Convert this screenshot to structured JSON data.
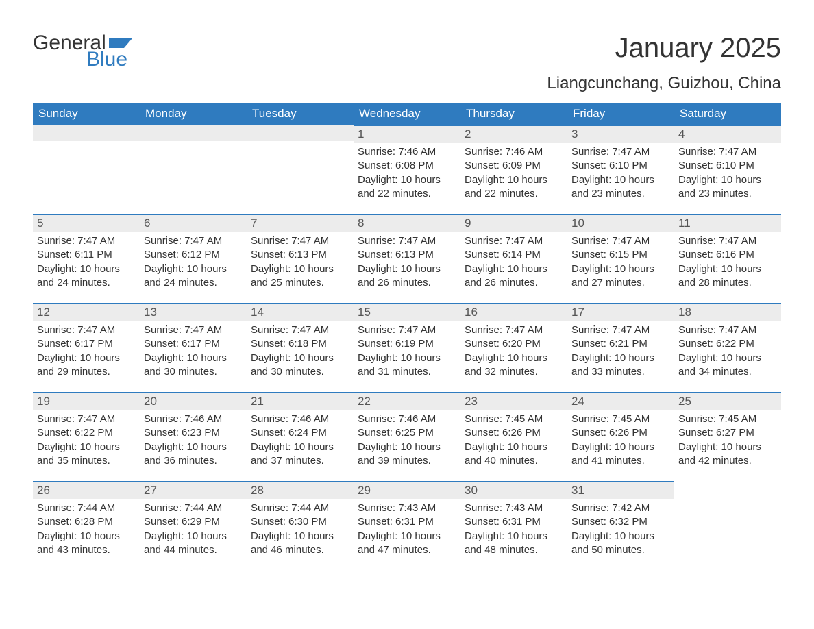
{
  "logo": {
    "word1": "General",
    "word2": "Blue",
    "word1_color": "#333333",
    "word2_color": "#2f7bbf",
    "flag_color": "#2f7bbf"
  },
  "title": "January 2025",
  "location": "Liangcunchang, Guizhou, China",
  "colors": {
    "header_bg": "#2f7bbf",
    "header_text": "#ffffff",
    "daynum_bg": "#ececec",
    "daynum_border": "#2f7bbf",
    "body_text": "#333333",
    "page_bg": "#ffffff"
  },
  "typography": {
    "title_fontsize": 40,
    "location_fontsize": 24,
    "header_fontsize": 17,
    "daynum_fontsize": 17,
    "body_fontsize": 15
  },
  "weekdays": [
    "Sunday",
    "Monday",
    "Tuesday",
    "Wednesday",
    "Thursday",
    "Friday",
    "Saturday"
  ],
  "weeks": [
    [
      null,
      null,
      null,
      {
        "n": "1",
        "sunrise": "Sunrise: 7:46 AM",
        "sunset": "Sunset: 6:08 PM",
        "daylight": "Daylight: 10 hours and 22 minutes."
      },
      {
        "n": "2",
        "sunrise": "Sunrise: 7:46 AM",
        "sunset": "Sunset: 6:09 PM",
        "daylight": "Daylight: 10 hours and 22 minutes."
      },
      {
        "n": "3",
        "sunrise": "Sunrise: 7:47 AM",
        "sunset": "Sunset: 6:10 PM",
        "daylight": "Daylight: 10 hours and 23 minutes."
      },
      {
        "n": "4",
        "sunrise": "Sunrise: 7:47 AM",
        "sunset": "Sunset: 6:10 PM",
        "daylight": "Daylight: 10 hours and 23 minutes."
      }
    ],
    [
      {
        "n": "5",
        "sunrise": "Sunrise: 7:47 AM",
        "sunset": "Sunset: 6:11 PM",
        "daylight": "Daylight: 10 hours and 24 minutes."
      },
      {
        "n": "6",
        "sunrise": "Sunrise: 7:47 AM",
        "sunset": "Sunset: 6:12 PM",
        "daylight": "Daylight: 10 hours and 24 minutes."
      },
      {
        "n": "7",
        "sunrise": "Sunrise: 7:47 AM",
        "sunset": "Sunset: 6:13 PM",
        "daylight": "Daylight: 10 hours and 25 minutes."
      },
      {
        "n": "8",
        "sunrise": "Sunrise: 7:47 AM",
        "sunset": "Sunset: 6:13 PM",
        "daylight": "Daylight: 10 hours and 26 minutes."
      },
      {
        "n": "9",
        "sunrise": "Sunrise: 7:47 AM",
        "sunset": "Sunset: 6:14 PM",
        "daylight": "Daylight: 10 hours and 26 minutes."
      },
      {
        "n": "10",
        "sunrise": "Sunrise: 7:47 AM",
        "sunset": "Sunset: 6:15 PM",
        "daylight": "Daylight: 10 hours and 27 minutes."
      },
      {
        "n": "11",
        "sunrise": "Sunrise: 7:47 AM",
        "sunset": "Sunset: 6:16 PM",
        "daylight": "Daylight: 10 hours and 28 minutes."
      }
    ],
    [
      {
        "n": "12",
        "sunrise": "Sunrise: 7:47 AM",
        "sunset": "Sunset: 6:17 PM",
        "daylight": "Daylight: 10 hours and 29 minutes."
      },
      {
        "n": "13",
        "sunrise": "Sunrise: 7:47 AM",
        "sunset": "Sunset: 6:17 PM",
        "daylight": "Daylight: 10 hours and 30 minutes."
      },
      {
        "n": "14",
        "sunrise": "Sunrise: 7:47 AM",
        "sunset": "Sunset: 6:18 PM",
        "daylight": "Daylight: 10 hours and 30 minutes."
      },
      {
        "n": "15",
        "sunrise": "Sunrise: 7:47 AM",
        "sunset": "Sunset: 6:19 PM",
        "daylight": "Daylight: 10 hours and 31 minutes."
      },
      {
        "n": "16",
        "sunrise": "Sunrise: 7:47 AM",
        "sunset": "Sunset: 6:20 PM",
        "daylight": "Daylight: 10 hours and 32 minutes."
      },
      {
        "n": "17",
        "sunrise": "Sunrise: 7:47 AM",
        "sunset": "Sunset: 6:21 PM",
        "daylight": "Daylight: 10 hours and 33 minutes."
      },
      {
        "n": "18",
        "sunrise": "Sunrise: 7:47 AM",
        "sunset": "Sunset: 6:22 PM",
        "daylight": "Daylight: 10 hours and 34 minutes."
      }
    ],
    [
      {
        "n": "19",
        "sunrise": "Sunrise: 7:47 AM",
        "sunset": "Sunset: 6:22 PM",
        "daylight": "Daylight: 10 hours and 35 minutes."
      },
      {
        "n": "20",
        "sunrise": "Sunrise: 7:46 AM",
        "sunset": "Sunset: 6:23 PM",
        "daylight": "Daylight: 10 hours and 36 minutes."
      },
      {
        "n": "21",
        "sunrise": "Sunrise: 7:46 AM",
        "sunset": "Sunset: 6:24 PM",
        "daylight": "Daylight: 10 hours and 37 minutes."
      },
      {
        "n": "22",
        "sunrise": "Sunrise: 7:46 AM",
        "sunset": "Sunset: 6:25 PM",
        "daylight": "Daylight: 10 hours and 39 minutes."
      },
      {
        "n": "23",
        "sunrise": "Sunrise: 7:45 AM",
        "sunset": "Sunset: 6:26 PM",
        "daylight": "Daylight: 10 hours and 40 minutes."
      },
      {
        "n": "24",
        "sunrise": "Sunrise: 7:45 AM",
        "sunset": "Sunset: 6:26 PM",
        "daylight": "Daylight: 10 hours and 41 minutes."
      },
      {
        "n": "25",
        "sunrise": "Sunrise: 7:45 AM",
        "sunset": "Sunset: 6:27 PM",
        "daylight": "Daylight: 10 hours and 42 minutes."
      }
    ],
    [
      {
        "n": "26",
        "sunrise": "Sunrise: 7:44 AM",
        "sunset": "Sunset: 6:28 PM",
        "daylight": "Daylight: 10 hours and 43 minutes."
      },
      {
        "n": "27",
        "sunrise": "Sunrise: 7:44 AM",
        "sunset": "Sunset: 6:29 PM",
        "daylight": "Daylight: 10 hours and 44 minutes."
      },
      {
        "n": "28",
        "sunrise": "Sunrise: 7:44 AM",
        "sunset": "Sunset: 6:30 PM",
        "daylight": "Daylight: 10 hours and 46 minutes."
      },
      {
        "n": "29",
        "sunrise": "Sunrise: 7:43 AM",
        "sunset": "Sunset: 6:31 PM",
        "daylight": "Daylight: 10 hours and 47 minutes."
      },
      {
        "n": "30",
        "sunrise": "Sunrise: 7:43 AM",
        "sunset": "Sunset: 6:31 PM",
        "daylight": "Daylight: 10 hours and 48 minutes."
      },
      {
        "n": "31",
        "sunrise": "Sunrise: 7:42 AM",
        "sunset": "Sunset: 6:32 PM",
        "daylight": "Daylight: 10 hours and 50 minutes."
      },
      null
    ]
  ]
}
